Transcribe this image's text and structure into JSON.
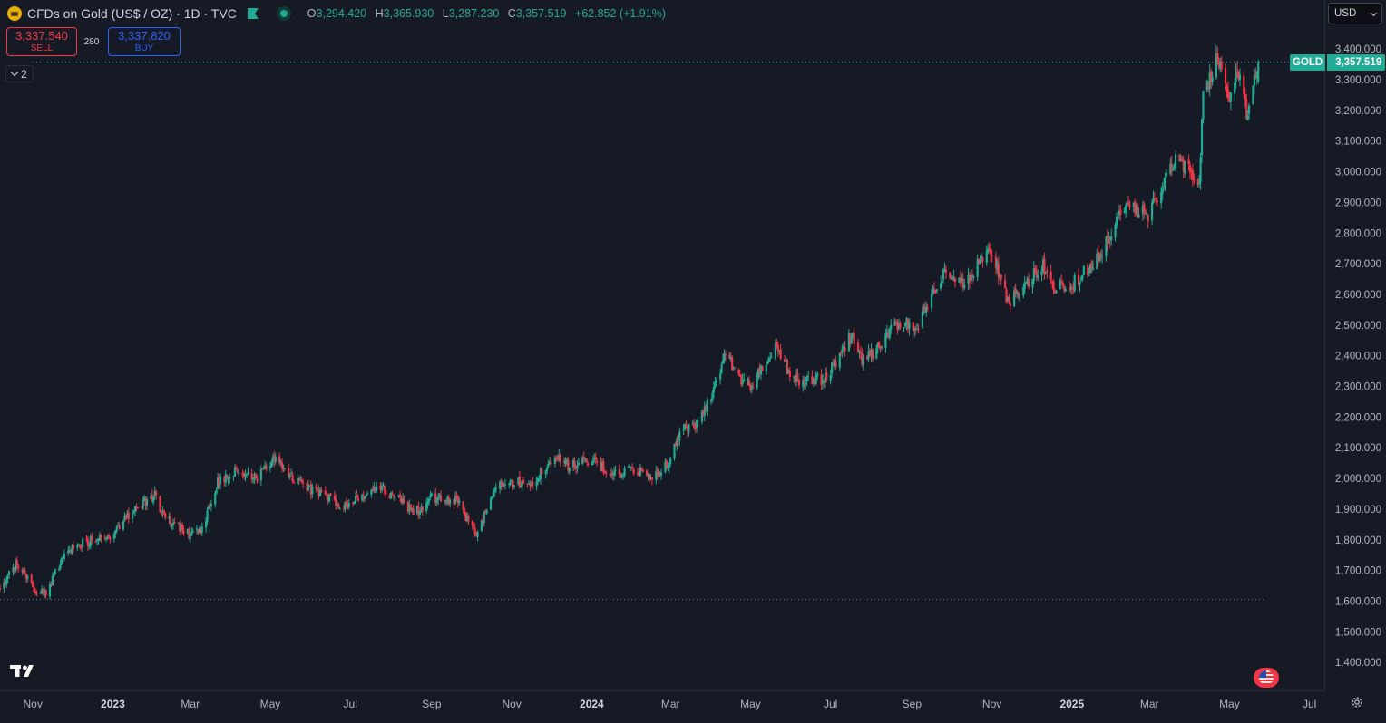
{
  "header": {
    "title": "CFDs on Gold (US$ / OZ) · 1D · TVC",
    "ohlc": {
      "o_label": "O",
      "o": "3,294.420",
      "h_label": "H",
      "h": "3,365.930",
      "l_label": "L",
      "l": "3,287.230",
      "c_label": "C",
      "c": "3,357.519",
      "change": "+62.852 (+1.91%)"
    }
  },
  "trade": {
    "sell_price": "3,337.540",
    "sell_label": "SELL",
    "spread": "280",
    "buy_price": "3,337.820",
    "buy_label": "BUY"
  },
  "indicators_toggle": {
    "count": "2"
  },
  "currency": {
    "selected": "USD"
  },
  "last_price": {
    "symbol": "GOLD",
    "value": "3,357.519"
  },
  "colors": {
    "up": "#22ab94",
    "down": "#f23645",
    "background": "#161a25",
    "axis_text": "#b2b5be",
    "grid": "#2a2e39"
  },
  "chart_data": {
    "type": "candlestick",
    "title": "CFDs on Gold (US$ / OZ)",
    "interval": "1D",
    "source": "TVC",
    "ylim": [
      1300,
      3560
    ],
    "y_ticks": [
      1400,
      1500,
      1600,
      1700,
      1800,
      1900,
      2000,
      2100,
      2200,
      2300,
      2400,
      2500,
      2600,
      2700,
      2800,
      2900,
      3000,
      3100,
      3200,
      3300,
      3400,
      3500
    ],
    "y_tick_labels": [
      "1,400.000",
      "1,500.000",
      "1,600.000",
      "1,700.000",
      "1,800.000",
      "1,900.000",
      "2,000.000",
      "2,100.000",
      "2,200.000",
      "2,300.000",
      "2,400.000",
      "2,500.000",
      "2,600.000",
      "2,700.000",
      "2,800.000",
      "2,900.000",
      "3,000.000",
      "3,100.000",
      "3,200.000",
      "3,300.000",
      "3,400.000",
      "3,500.000"
    ],
    "x_range": [
      "2022-10-07",
      "2025-07-13"
    ],
    "x_tick_dates": [
      "2022-11-01",
      "2023-01-01",
      "2023-03-01",
      "2023-05-01",
      "2023-07-01",
      "2023-09-01",
      "2023-11-01",
      "2024-01-01",
      "2024-03-01",
      "2024-05-01",
      "2024-07-01",
      "2024-09-01",
      "2024-11-01",
      "2025-01-01",
      "2025-03-01",
      "2025-05-01",
      "2025-07-01"
    ],
    "x_tick_labels": [
      "Nov",
      "2023",
      "Mar",
      "May",
      "Jul",
      "Sep",
      "Nov",
      "2024",
      "Mar",
      "May",
      "Jul",
      "Sep",
      "Nov",
      "2025",
      "Mar",
      "May",
      "Jul"
    ],
    "close_path": [
      [
        "2022-10-07",
        1640
      ],
      [
        "2022-10-20",
        1725
      ],
      [
        "2022-11-03",
        1635
      ],
      [
        "2022-11-12",
        1630
      ],
      [
        "2022-11-25",
        1760
      ],
      [
        "2022-12-10",
        1790
      ],
      [
        "2022-12-31",
        1820
      ],
      [
        "2023-01-20",
        1910
      ],
      [
        "2023-02-02",
        1945
      ],
      [
        "2023-02-10",
        1870
      ],
      [
        "2023-02-28",
        1820
      ],
      [
        "2023-03-10",
        1830
      ],
      [
        "2023-03-22",
        1990
      ],
      [
        "2023-04-05",
        2020
      ],
      [
        "2023-04-20",
        2000
      ],
      [
        "2023-05-04",
        2060
      ],
      [
        "2023-05-15",
        2010
      ],
      [
        "2023-06-01",
        1965
      ],
      [
        "2023-06-22",
        1920
      ],
      [
        "2023-06-29",
        1910
      ],
      [
        "2023-07-20",
        1975
      ],
      [
        "2023-08-10",
        1920
      ],
      [
        "2023-08-20",
        1890
      ],
      [
        "2023-09-01",
        1935
      ],
      [
        "2023-09-20",
        1925
      ],
      [
        "2023-10-05",
        1820
      ],
      [
        "2023-10-20",
        1980
      ],
      [
        "2023-11-05",
        1990
      ],
      [
        "2023-11-15",
        1970
      ],
      [
        "2023-12-04",
        2080
      ],
      [
        "2023-12-14",
        2040
      ],
      [
        "2023-12-28",
        2060
      ],
      [
        "2024-01-18",
        2020
      ],
      [
        "2024-02-05",
        2030
      ],
      [
        "2024-02-15",
        1995
      ],
      [
        "2024-02-29",
        2050
      ],
      [
        "2024-03-10",
        2170
      ],
      [
        "2024-03-22",
        2170
      ],
      [
        "2024-04-05",
        2320
      ],
      [
        "2024-04-12",
        2410
      ],
      [
        "2024-04-23",
        2320
      ],
      [
        "2024-05-02",
        2300
      ],
      [
        "2024-05-20",
        2430
      ],
      [
        "2024-05-30",
        2350
      ],
      [
        "2024-06-10",
        2310
      ],
      [
        "2024-06-28",
        2330
      ],
      [
        "2024-07-17",
        2470
      ],
      [
        "2024-07-26",
        2380
      ],
      [
        "2024-08-10",
        2440
      ],
      [
        "2024-08-20",
        2510
      ],
      [
        "2024-09-05",
        2500
      ],
      [
        "2024-09-26",
        2670
      ],
      [
        "2024-10-10",
        2630
      ],
      [
        "2024-10-31",
        2750
      ],
      [
        "2024-11-14",
        2570
      ],
      [
        "2024-11-25",
        2630
      ],
      [
        "2024-12-10",
        2690
      ],
      [
        "2024-12-20",
        2620
      ],
      [
        "2024-12-31",
        2630
      ],
      [
        "2025-01-20",
        2710
      ],
      [
        "2025-02-11",
        2900
      ],
      [
        "2025-02-28",
        2860
      ],
      [
        "2025-03-20",
        3040
      ],
      [
        "2025-04-08",
        2980
      ],
      [
        "2025-04-11",
        3240
      ],
      [
        "2025-04-22",
        3380
      ],
      [
        "2025-05-01",
        3240
      ],
      [
        "2025-05-08",
        3320
      ],
      [
        "2025-05-15",
        3180
      ],
      [
        "2025-05-23",
        3357.519
      ]
    ]
  }
}
